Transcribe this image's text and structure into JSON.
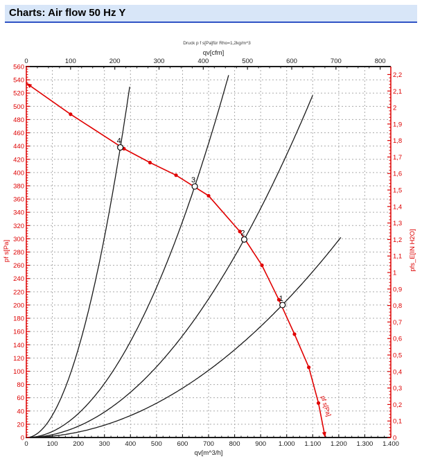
{
  "header": {
    "title": "Charts: Air flow 50 Hz Y"
  },
  "colors": {
    "accent_bar": "#d8e6f8",
    "accent_line": "#2e52c4",
    "axis_red": "#dd0000",
    "curve_red": "#e00000",
    "axis_black": "#1a1a1a",
    "grid": "#aaaaaa"
  },
  "chart_data": {
    "type": "line",
    "note": "Druck p f s[Pa]für Rho=1,2kg/m^3",
    "fan_curve_label": "pf s[Pa]",
    "axes": {
      "top": {
        "label": "qv[cfm]",
        "min": 0,
        "max": 824,
        "major": 100,
        "minor": 25,
        "unit_to_bottom": 1.69901,
        "values": [
          0,
          100,
          200,
          300,
          400,
          500,
          600,
          700,
          800
        ],
        "labels": [
          "0",
          "100",
          "200",
          "300",
          "400",
          "500",
          "600",
          "700",
          "800"
        ]
      },
      "bottom": {
        "label": "qv[m^3/h]",
        "min": 0,
        "max": 1400,
        "major": 100,
        "minor": 25,
        "values": [
          0,
          100,
          200,
          300,
          400,
          500,
          600,
          700,
          800,
          900,
          1000,
          1100,
          1200,
          1300,
          1400
        ],
        "labels": [
          "0",
          "100",
          "200",
          "300",
          "400",
          "500",
          "600",
          "700",
          "800",
          "900",
          "1.000",
          "1.100",
          "1.200",
          "1.300",
          "1.400"
        ]
      },
      "left": {
        "label": "pf s[Pa]",
        "min": 0,
        "max": 560,
        "major": 20,
        "minor": 4,
        "values": [
          0,
          20,
          40,
          60,
          80,
          100,
          120,
          140,
          160,
          180,
          200,
          220,
          240,
          260,
          280,
          300,
          320,
          340,
          360,
          380,
          400,
          420,
          440,
          460,
          480,
          500,
          520,
          540,
          560
        ],
        "labels": [
          "0",
          "20",
          "40",
          "60",
          "80",
          "100",
          "120",
          "140",
          "160",
          "180",
          "200",
          "220",
          "240",
          "260",
          "280",
          "300",
          "320",
          "340",
          "360",
          "380",
          "400",
          "420",
          "440",
          "460",
          "480",
          "500",
          "520",
          "540",
          "560"
        ]
      },
      "right": {
        "label": "pfs_E[IN H2O]",
        "min": 0,
        "max": 2.2,
        "major": 0.1,
        "minor": 0.02,
        "unit_to_left": 249.089,
        "values": [
          0,
          0.1,
          0.2,
          0.3,
          0.4,
          0.5,
          0.6,
          0.7,
          0.8,
          0.9,
          1,
          1.1,
          1.2,
          1.3,
          1.4,
          1.5,
          1.6,
          1.7,
          1.8,
          1.9,
          2,
          2.1,
          2.2
        ],
        "labels": [
          "0",
          "0,1",
          "0,2",
          "0,3",
          "0,4",
          "0,5",
          "0,6",
          "0,7",
          "0,8",
          "0,9",
          "1",
          "1,1",
          "1,2",
          "1,3",
          "1,4",
          "1,5",
          "1,6",
          "1,7",
          "1,8",
          "1,9",
          "2",
          "2,1",
          "2,2"
        ]
      }
    },
    "grid": {
      "vertical_step": 100,
      "horizontal_step": 20,
      "on": true
    },
    "fan_curve": {
      "points": [
        [
          0,
          535
        ],
        [
          170,
          488
        ],
        [
          375,
          436
        ],
        [
          475,
          415
        ],
        [
          575,
          396
        ],
        [
          700,
          365
        ],
        [
          820,
          311
        ],
        [
          905,
          260
        ],
        [
          970,
          208
        ],
        [
          1030,
          156
        ],
        [
          1085,
          106
        ],
        [
          1122,
          52
        ],
        [
          1148,
          0
        ]
      ]
    },
    "system_curves": [
      {
        "label": "1",
        "k": 0.000207,
        "qv_end": 1208
      },
      {
        "label": "2",
        "k": 0.000427,
        "qv_end": 1100
      },
      {
        "label": "3",
        "k": 0.000906,
        "qv_end": 777
      },
      {
        "label": "4",
        "k": 0.00336,
        "qv_end": 397
      }
    ],
    "operating_points": [
      {
        "label": "1",
        "qv": 984,
        "pa": 200
      },
      {
        "label": "2",
        "qv": 837,
        "pa": 299
      },
      {
        "label": "3",
        "qv": 647,
        "pa": 379
      },
      {
        "label": "4",
        "qv": 361,
        "pa": 438
      }
    ]
  }
}
